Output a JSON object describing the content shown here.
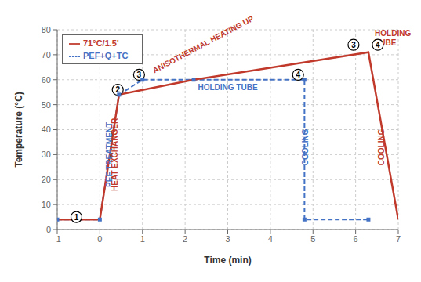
{
  "chart_data": {
    "type": "line",
    "xlabel": "Time (min)",
    "ylabel": "Temperature (°C)",
    "xlim": [
      -1,
      7
    ],
    "ylim": [
      0,
      80
    ],
    "xticks": [
      -1,
      0,
      1,
      2,
      3,
      4,
      5,
      6,
      7
    ],
    "yticks": [
      0,
      10,
      20,
      30,
      40,
      50,
      60,
      70,
      80
    ],
    "grid": true,
    "legend": "upper left",
    "series": [
      {
        "name": "PEF+Q+TC",
        "color": "#4472c4",
        "line_style": "dashed",
        "marker": "square",
        "x": [
          -1,
          0,
          0.45,
          1.0,
          2.2,
          4.8,
          4.8,
          6.3
        ],
        "values": [
          4,
          4,
          54,
          60,
          60,
          60,
          4,
          4
        ]
      },
      {
        "name": "71°C/1.5'",
        "color": "#c0392b",
        "line_style": "solid",
        "x": [
          -1,
          0,
          0.45,
          2.2,
          6.3,
          6.3,
          7
        ],
        "values": [
          4,
          4,
          54,
          60,
          71,
          71,
          4
        ]
      }
    ],
    "annotations": [
      {
        "x": 0.22,
        "y": 30,
        "text": "PEF TREATMENT",
        "color": "#4472c4"
      },
      {
        "x": 0.35,
        "y": 30,
        "text": "HEAT EXCHANGER",
        "color": "#c0392b"
      },
      {
        "x": 1.3,
        "y": 62,
        "text": "ANISOTHERMAL HEATING UP",
        "color": "#c0392b"
      },
      {
        "x": 3.0,
        "y": 57,
        "text": "HOLDING TUBE",
        "color": "#4472c4"
      },
      {
        "x": 4.82,
        "y": 33,
        "text": "COOLING",
        "color": "#4472c4"
      },
      {
        "x": 6.45,
        "y": 73,
        "text": "HOLDING\nTUBE",
        "color": "#c0392b"
      },
      {
        "x": 6.6,
        "y": 33,
        "text": "COOLING",
        "color": "#c0392b"
      },
      {
        "x": -0.55,
        "y": 5,
        "text": "1",
        "marker": "circle"
      },
      {
        "x": 0.42,
        "y": 56,
        "text": "2",
        "marker": "circle"
      },
      {
        "x": 0.92,
        "y": 62,
        "text": "3",
        "marker": "circle"
      },
      {
        "x": 4.65,
        "y": 62,
        "text": "4",
        "marker": "circle"
      },
      {
        "x": 5.95,
        "y": 74,
        "text": "3",
        "marker": "circle"
      },
      {
        "x": 6.52,
        "y": 74,
        "text": "4",
        "marker": "circle"
      }
    ]
  }
}
